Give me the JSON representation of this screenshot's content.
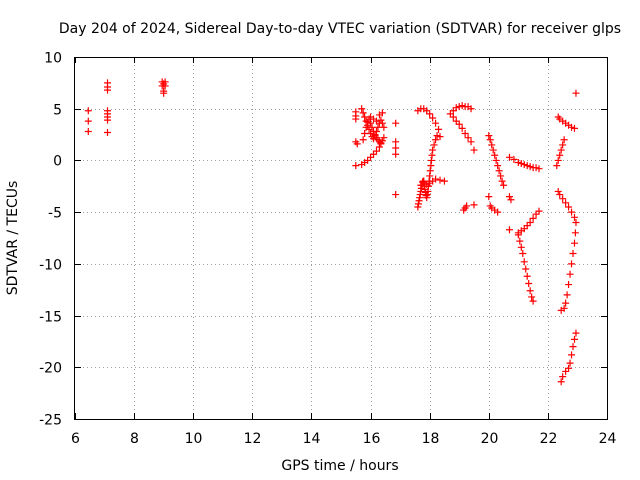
{
  "chart_data": {
    "type": "scatter",
    "title": "Day 204 of 2024, Sidereal Day-to-day VTEC variation (SDTVAR) for receiver glps",
    "xlabel": "GPS time / hours",
    "ylabel": "SDTVAR / TECUs",
    "xlim": [
      6,
      24
    ],
    "ylim": [
      -25,
      10
    ],
    "xticks": [
      6,
      8,
      10,
      12,
      14,
      16,
      18,
      20,
      22,
      24
    ],
    "yticks": [
      -25,
      -20,
      -15,
      -10,
      -5,
      0,
      5,
      10
    ],
    "xtick_labels": [
      "6",
      "8",
      "10",
      "12",
      "14",
      "16",
      "18",
      "20",
      "22",
      "24"
    ],
    "ytick_labels": [
      "-25",
      "-20",
      "-15",
      "-10",
      "-5",
      "0",
      "5",
      "10"
    ],
    "grid": true,
    "marker": "+",
    "color": "#ff0000",
    "series": [
      {
        "name": "SDTVAR",
        "points": [
          [
            6.45,
            4.8
          ],
          [
            6.45,
            3.8
          ],
          [
            6.45,
            2.8
          ],
          [
            7.1,
            7.5
          ],
          [
            7.1,
            7.1
          ],
          [
            7.1,
            6.8
          ],
          [
            7.1,
            4.8
          ],
          [
            7.1,
            4.5
          ],
          [
            7.1,
            4.2
          ],
          [
            7.1,
            3.9
          ],
          [
            7.1,
            2.7
          ],
          [
            8.95,
            7.6
          ],
          [
            9.05,
            7.6
          ],
          [
            9.0,
            7.4
          ],
          [
            8.95,
            7.2
          ],
          [
            9.05,
            7.2
          ],
          [
            9.0,
            6.7
          ],
          [
            9.0,
            6.5
          ],
          [
            15.5,
            4.7
          ],
          [
            15.5,
            4.3
          ],
          [
            15.5,
            4.0
          ],
          [
            15.5,
            1.8
          ],
          [
            15.55,
            1.6
          ],
          [
            15.5,
            -0.5
          ],
          [
            15.7,
            5.0
          ],
          [
            15.75,
            4.6
          ],
          [
            15.8,
            4.2
          ],
          [
            15.85,
            3.8
          ],
          [
            15.9,
            3.4
          ],
          [
            15.95,
            3.0
          ],
          [
            16.0,
            2.6
          ],
          [
            16.05,
            2.3
          ],
          [
            16.1,
            2.1
          ],
          [
            16.15,
            2.4
          ],
          [
            16.2,
            2.8
          ],
          [
            16.25,
            3.2
          ],
          [
            16.3,
            3.6
          ],
          [
            16.35,
            3.9
          ],
          [
            16.4,
            3.6
          ],
          [
            16.45,
            3.2
          ],
          [
            15.75,
            2.0
          ],
          [
            15.8,
            2.6
          ],
          [
            15.85,
            3.2
          ],
          [
            15.9,
            3.7
          ],
          [
            15.95,
            4.0
          ],
          [
            16.0,
            3.6
          ],
          [
            16.05,
            3.2
          ],
          [
            16.1,
            2.8
          ],
          [
            16.15,
            2.5
          ],
          [
            16.2,
            2.2
          ],
          [
            16.25,
            2.0
          ],
          [
            16.3,
            1.8
          ],
          [
            16.35,
            1.7
          ],
          [
            16.4,
            1.9
          ],
          [
            16.45,
            2.2
          ],
          [
            16.0,
            4.2
          ],
          [
            16.1,
            4.0
          ],
          [
            16.2,
            3.8
          ],
          [
            16.3,
            4.4
          ],
          [
            16.4,
            4.6
          ],
          [
            15.7,
            -0.4
          ],
          [
            15.8,
            -0.2
          ],
          [
            15.9,
            0.0
          ],
          [
            16.0,
            0.3
          ],
          [
            16.1,
            0.6
          ],
          [
            16.2,
            0.9
          ],
          [
            16.3,
            1.3
          ],
          [
            16.35,
            1.6
          ],
          [
            16.85,
            3.6
          ],
          [
            16.85,
            1.8
          ],
          [
            16.85,
            1.2
          ],
          [
            16.85,
            0.6
          ],
          [
            16.85,
            -3.3
          ],
          [
            17.6,
            4.8
          ],
          [
            17.7,
            5.0
          ],
          [
            17.8,
            5.0
          ],
          [
            17.9,
            4.8
          ],
          [
            18.0,
            4.5
          ],
          [
            18.1,
            4.1
          ],
          [
            18.2,
            3.6
          ],
          [
            18.3,
            3.0
          ],
          [
            18.35,
            2.3
          ],
          [
            17.6,
            -4.5
          ],
          [
            17.62,
            -4.2
          ],
          [
            17.64,
            -3.9
          ],
          [
            17.66,
            -3.6
          ],
          [
            17.68,
            -3.3
          ],
          [
            17.7,
            -3.0
          ],
          [
            17.72,
            -2.7
          ],
          [
            17.74,
            -2.4
          ],
          [
            17.76,
            -2.1
          ],
          [
            17.78,
            -2.0
          ],
          [
            17.8,
            -2.2
          ],
          [
            17.82,
            -2.5
          ],
          [
            17.84,
            -2.8
          ],
          [
            17.86,
            -3.1
          ],
          [
            17.88,
            -3.4
          ],
          [
            17.9,
            -3.6
          ],
          [
            17.92,
            -3.3
          ],
          [
            17.94,
            -3.0
          ],
          [
            17.96,
            -2.5
          ],
          [
            17.98,
            -2.0
          ],
          [
            18.0,
            -1.5
          ],
          [
            18.02,
            -1.0
          ],
          [
            18.04,
            -0.5
          ],
          [
            18.06,
            0.0
          ],
          [
            18.08,
            0.5
          ],
          [
            18.1,
            1.0
          ],
          [
            18.15,
            1.5
          ],
          [
            18.2,
            2.0
          ],
          [
            18.25,
            2.4
          ],
          [
            17.7,
            -2.4
          ],
          [
            17.8,
            -2.0
          ],
          [
            17.9,
            -2.3
          ],
          [
            18.0,
            -2.2
          ],
          [
            18.1,
            -2.0
          ],
          [
            18.2,
            -1.8
          ],
          [
            18.35,
            -1.9
          ],
          [
            18.5,
            -2.0
          ],
          [
            18.7,
            4.5
          ],
          [
            18.8,
            4.8
          ],
          [
            18.9,
            5.1
          ],
          [
            19.0,
            5.2
          ],
          [
            19.1,
            5.3
          ],
          [
            19.2,
            5.2
          ],
          [
            19.3,
            5.2
          ],
          [
            19.4,
            5.0
          ],
          [
            18.8,
            4.2
          ],
          [
            18.9,
            3.8
          ],
          [
            19.0,
            3.5
          ],
          [
            19.1,
            3.1
          ],
          [
            19.2,
            2.6
          ],
          [
            19.3,
            2.2
          ],
          [
            19.4,
            1.8
          ],
          [
            19.5,
            1.0
          ],
          [
            19.15,
            -4.8
          ],
          [
            19.2,
            -4.6
          ],
          [
            19.25,
            -4.4
          ],
          [
            19.5,
            -4.3
          ],
          [
            20.0,
            -3.5
          ],
          [
            20.05,
            -4.4
          ],
          [
            20.1,
            -4.6
          ],
          [
            20.2,
            -4.8
          ],
          [
            20.3,
            -5.0
          ],
          [
            20.0,
            2.4
          ],
          [
            20.05,
            2.0
          ],
          [
            20.1,
            1.5
          ],
          [
            20.15,
            1.0
          ],
          [
            20.2,
            0.5
          ],
          [
            20.25,
            0.0
          ],
          [
            20.3,
            -0.5
          ],
          [
            20.35,
            -1.0
          ],
          [
            20.4,
            -1.5
          ],
          [
            20.45,
            -2.0
          ],
          [
            20.5,
            -2.4
          ],
          [
            20.7,
            0.3
          ],
          [
            20.85,
            0.1
          ],
          [
            21.0,
            -0.2
          ],
          [
            21.1,
            -0.3
          ],
          [
            21.2,
            -0.4
          ],
          [
            21.3,
            -0.5
          ],
          [
            21.4,
            -0.6
          ],
          [
            21.5,
            -0.7
          ],
          [
            21.6,
            -0.7
          ],
          [
            21.7,
            -0.8
          ],
          [
            20.7,
            -3.5
          ],
          [
            20.75,
            -3.8
          ],
          [
            20.7,
            -6.7
          ],
          [
            21.0,
            -7.0
          ],
          [
            21.1,
            -6.8
          ],
          [
            21.2,
            -6.6
          ],
          [
            21.3,
            -6.3
          ],
          [
            21.4,
            -6.0
          ],
          [
            21.5,
            -5.6
          ],
          [
            21.6,
            -5.2
          ],
          [
            21.7,
            -4.9
          ],
          [
            21.0,
            -7.2
          ],
          [
            21.05,
            -7.8
          ],
          [
            21.1,
            -8.4
          ],
          [
            21.15,
            -9.0
          ],
          [
            21.2,
            -9.8
          ],
          [
            21.25,
            -10.5
          ],
          [
            21.3,
            -11.2
          ],
          [
            21.35,
            -11.9
          ],
          [
            21.4,
            -12.6
          ],
          [
            21.45,
            -13.2
          ],
          [
            21.5,
            -13.6
          ],
          [
            22.35,
            4.2
          ],
          [
            22.4,
            4.0
          ],
          [
            22.5,
            3.8
          ],
          [
            22.6,
            3.6
          ],
          [
            22.7,
            3.4
          ],
          [
            22.8,
            3.2
          ],
          [
            22.9,
            3.1
          ],
          [
            22.95,
            6.5
          ],
          [
            22.3,
            -0.5
          ],
          [
            22.35,
            0.0
          ],
          [
            22.4,
            0.5
          ],
          [
            22.45,
            1.0
          ],
          [
            22.5,
            1.5
          ],
          [
            22.55,
            2.0
          ],
          [
            22.35,
            -3.0
          ],
          [
            22.4,
            -3.3
          ],
          [
            22.5,
            -3.7
          ],
          [
            22.6,
            -4.1
          ],
          [
            22.7,
            -4.5
          ],
          [
            22.8,
            -5.0
          ],
          [
            22.9,
            -5.5
          ],
          [
            22.95,
            -6.0
          ],
          [
            22.93,
            -7.0
          ],
          [
            22.9,
            -8.0
          ],
          [
            22.85,
            -9.0
          ],
          [
            22.8,
            -10.0
          ],
          [
            22.75,
            -11.0
          ],
          [
            22.7,
            -12.0
          ],
          [
            22.65,
            -13.0
          ],
          [
            22.6,
            -13.8
          ],
          [
            22.55,
            -14.3
          ],
          [
            22.45,
            -14.5
          ],
          [
            22.95,
            -16.7
          ],
          [
            22.9,
            -17.3
          ],
          [
            22.85,
            -18.0
          ],
          [
            22.8,
            -18.8
          ],
          [
            22.75,
            -19.6
          ],
          [
            22.7,
            -20.1
          ],
          [
            22.6,
            -20.4
          ],
          [
            22.5,
            -20.9
          ],
          [
            22.45,
            -21.4
          ]
        ]
      }
    ]
  }
}
